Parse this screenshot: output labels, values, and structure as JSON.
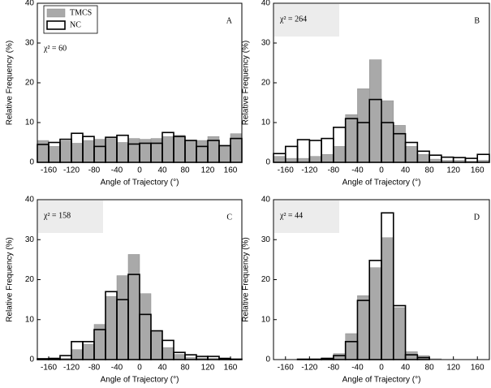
{
  "chart_data": [
    {
      "type": "histogram",
      "label": "A",
      "annotation": "χ² = 60",
      "annotation_box": false,
      "legend": "upper left",
      "xlabel": "Angle of Trajectory (°)",
      "ylabel": "Relative Frequency (%)",
      "bins": [
        -180,
        -160,
        -140,
        -120,
        -100,
        -80,
        -60,
        -40,
        -20,
        0,
        20,
        40,
        60,
        80,
        100,
        120,
        140,
        160,
        180
      ],
      "xlim": [
        -180,
        180
      ],
      "xticks": [
        -160,
        -120,
        -80,
        -40,
        0,
        40,
        80,
        120,
        160
      ],
      "ylim": [
        0,
        40
      ],
      "yticks": [
        0,
        10,
        20,
        30,
        40
      ],
      "series": [
        {
          "name": "TMCS",
          "color": "#a9a9a9",
          "style": "filled",
          "values": [
            5.5,
            4,
            5.4,
            4.8,
            5.5,
            5.8,
            6,
            5,
            6,
            5.8,
            6,
            6.5,
            6.8,
            5.6,
            5.5,
            6.5,
            4,
            7.2
          ]
        },
        {
          "name": "NC",
          "color": "#000000",
          "style": "outline",
          "values": [
            4.5,
            5,
            5.8,
            7.3,
            6.5,
            4,
            6.3,
            6.8,
            4.6,
            4.8,
            4.8,
            7.5,
            6.5,
            5.5,
            4,
            5.5,
            4.2,
            6
          ]
        }
      ]
    },
    {
      "type": "histogram",
      "label": "B",
      "annotation": "χ² = 264",
      "annotation_box": true,
      "xlabel": "Angle of Trajectory (°)",
      "ylabel": "Relative Frequency (%)",
      "bins": [
        -180,
        -160,
        -140,
        -120,
        -100,
        -80,
        -60,
        -40,
        -20,
        0,
        20,
        40,
        60,
        80,
        100,
        120,
        140,
        160,
        180
      ],
      "xlim": [
        -180,
        180
      ],
      "xticks": [
        -160,
        -120,
        -80,
        -40,
        0,
        40,
        80,
        120,
        160
      ],
      "ylim": [
        0,
        40
      ],
      "yticks": [
        0,
        10,
        20,
        30,
        40
      ],
      "series": [
        {
          "color": "#a9a9a9",
          "style": "filled",
          "values": [
            1.5,
            1,
            1,
            1.5,
            2,
            4,
            12,
            18.5,
            25.8,
            15.5,
            9.3,
            4,
            2,
            0.8,
            0.5,
            0.5,
            0.3,
            0.5
          ]
        },
        {
          "color": "#000000",
          "style": "outline",
          "values": [
            2.2,
            4,
            5.7,
            5.5,
            6,
            8.8,
            11,
            10,
            15.8,
            10,
            7.2,
            5,
            2.8,
            1.8,
            1.3,
            1.2,
            1,
            2
          ]
        }
      ]
    },
    {
      "type": "histogram",
      "label": "C",
      "annotation": "χ² = 158",
      "annotation_box": true,
      "xlabel": "Angle of Trajectory (°)",
      "ylabel": "Relative Frequency (%)",
      "bins": [
        -180,
        -160,
        -140,
        -120,
        -100,
        -80,
        -60,
        -40,
        -20,
        0,
        20,
        40,
        60,
        80,
        100,
        120,
        140,
        160,
        180
      ],
      "xlim": [
        -180,
        180
      ],
      "xticks": [
        -160,
        -120,
        -80,
        -40,
        0,
        40,
        80,
        120,
        160
      ],
      "ylim": [
        0,
        40
      ],
      "yticks": [
        0,
        10,
        20,
        30,
        40
      ],
      "series": [
        {
          "color": "#a9a9a9",
          "style": "filled",
          "values": [
            0.3,
            0.2,
            0.3,
            2.5,
            3.8,
            8.8,
            15.8,
            21,
            26.3,
            16.5,
            7.2,
            3,
            1.3,
            0.5,
            0.4,
            0.3,
            0.2,
            0.2
          ]
        },
        {
          "color": "#000000",
          "style": "outline",
          "values": [
            0.2,
            0.3,
            1,
            4.5,
            4.5,
            7.5,
            17,
            15,
            21.3,
            11.3,
            7.2,
            4.8,
            1.8,
            1.2,
            0.8,
            0.8,
            0.3,
            0.1
          ]
        }
      ]
    },
    {
      "type": "histogram",
      "label": "D",
      "annotation": "χ² = 44",
      "annotation_box": true,
      "xlabel": "Angle of Trajectory (°)",
      "ylabel": "Relative Frequency (%)",
      "bins": [
        -180,
        -160,
        -140,
        -120,
        -100,
        -80,
        -60,
        -40,
        -20,
        0,
        20,
        40,
        60,
        80,
        100,
        120,
        140,
        160,
        180
      ],
      "xlim": [
        -180,
        180
      ],
      "xticks": [
        -160,
        -120,
        -80,
        -40,
        0,
        40,
        80,
        120,
        160
      ],
      "ylim": [
        0,
        40
      ],
      "yticks": [
        0,
        10,
        20,
        30,
        40
      ],
      "series": [
        {
          "color": "#a9a9a9",
          "style": "filled",
          "values": [
            0,
            0,
            0.1,
            0.1,
            0.4,
            1.5,
            6.5,
            16,
            23,
            30.5,
            13,
            2,
            1,
            0.2,
            0,
            0,
            0,
            0
          ]
        },
        {
          "color": "#000000",
          "style": "outline",
          "values": [
            0,
            0,
            0.1,
            0.1,
            0.3,
            1,
            4.5,
            14.8,
            24.8,
            36.7,
            13.5,
            1.2,
            0.5,
            0,
            0,
            0,
            0,
            0
          ]
        }
      ]
    }
  ]
}
